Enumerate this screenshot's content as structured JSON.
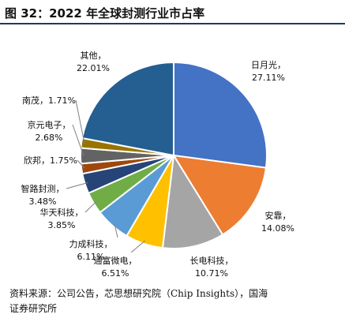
{
  "header": {
    "title": "图 32：2022 年全球封测行业市占率"
  },
  "footer": {
    "source_line1": "资料来源：公司公告，芯思想研究院（Chip Insights），国海",
    "source_line2": "证券研究所"
  },
  "chart_data": {
    "type": "pie",
    "title": "",
    "start_angle_deg": 0,
    "direction": "clockwise",
    "slices": [
      {
        "name": "日月光",
        "value": 27.11,
        "label": "27.11%",
        "color": "#4472c4"
      },
      {
        "name": "安靠",
        "value": 14.08,
        "label": "14.08%",
        "color": "#ed7d31"
      },
      {
        "name": "长电科技",
        "value": 10.71,
        "label": "10.71%",
        "color": "#a5a5a5"
      },
      {
        "name": "通富微电",
        "value": 6.51,
        "label": "6.51%",
        "color": "#ffc000"
      },
      {
        "name": "力成科技",
        "value": 6.11,
        "label": "6.11%",
        "color": "#5b9bd5"
      },
      {
        "name": "华天科技",
        "value": 3.85,
        "label": "3.85%",
        "color": "#70ad47"
      },
      {
        "name": "智路封测",
        "value": 3.48,
        "label": "3.48%",
        "color": "#264478"
      },
      {
        "name": "欣邦",
        "value": 1.75,
        "label": "1.75%",
        "color": "#9e480e"
      },
      {
        "name": "京元电子",
        "value": 2.68,
        "label": "2.68%",
        "color": "#636363"
      },
      {
        "name": "南茂",
        "value": 1.71,
        "label": "1.71%",
        "color": "#997300"
      },
      {
        "name": "其他",
        "value": 22.01,
        "label": "22.01%",
        "color": "#255e91"
      }
    ]
  }
}
